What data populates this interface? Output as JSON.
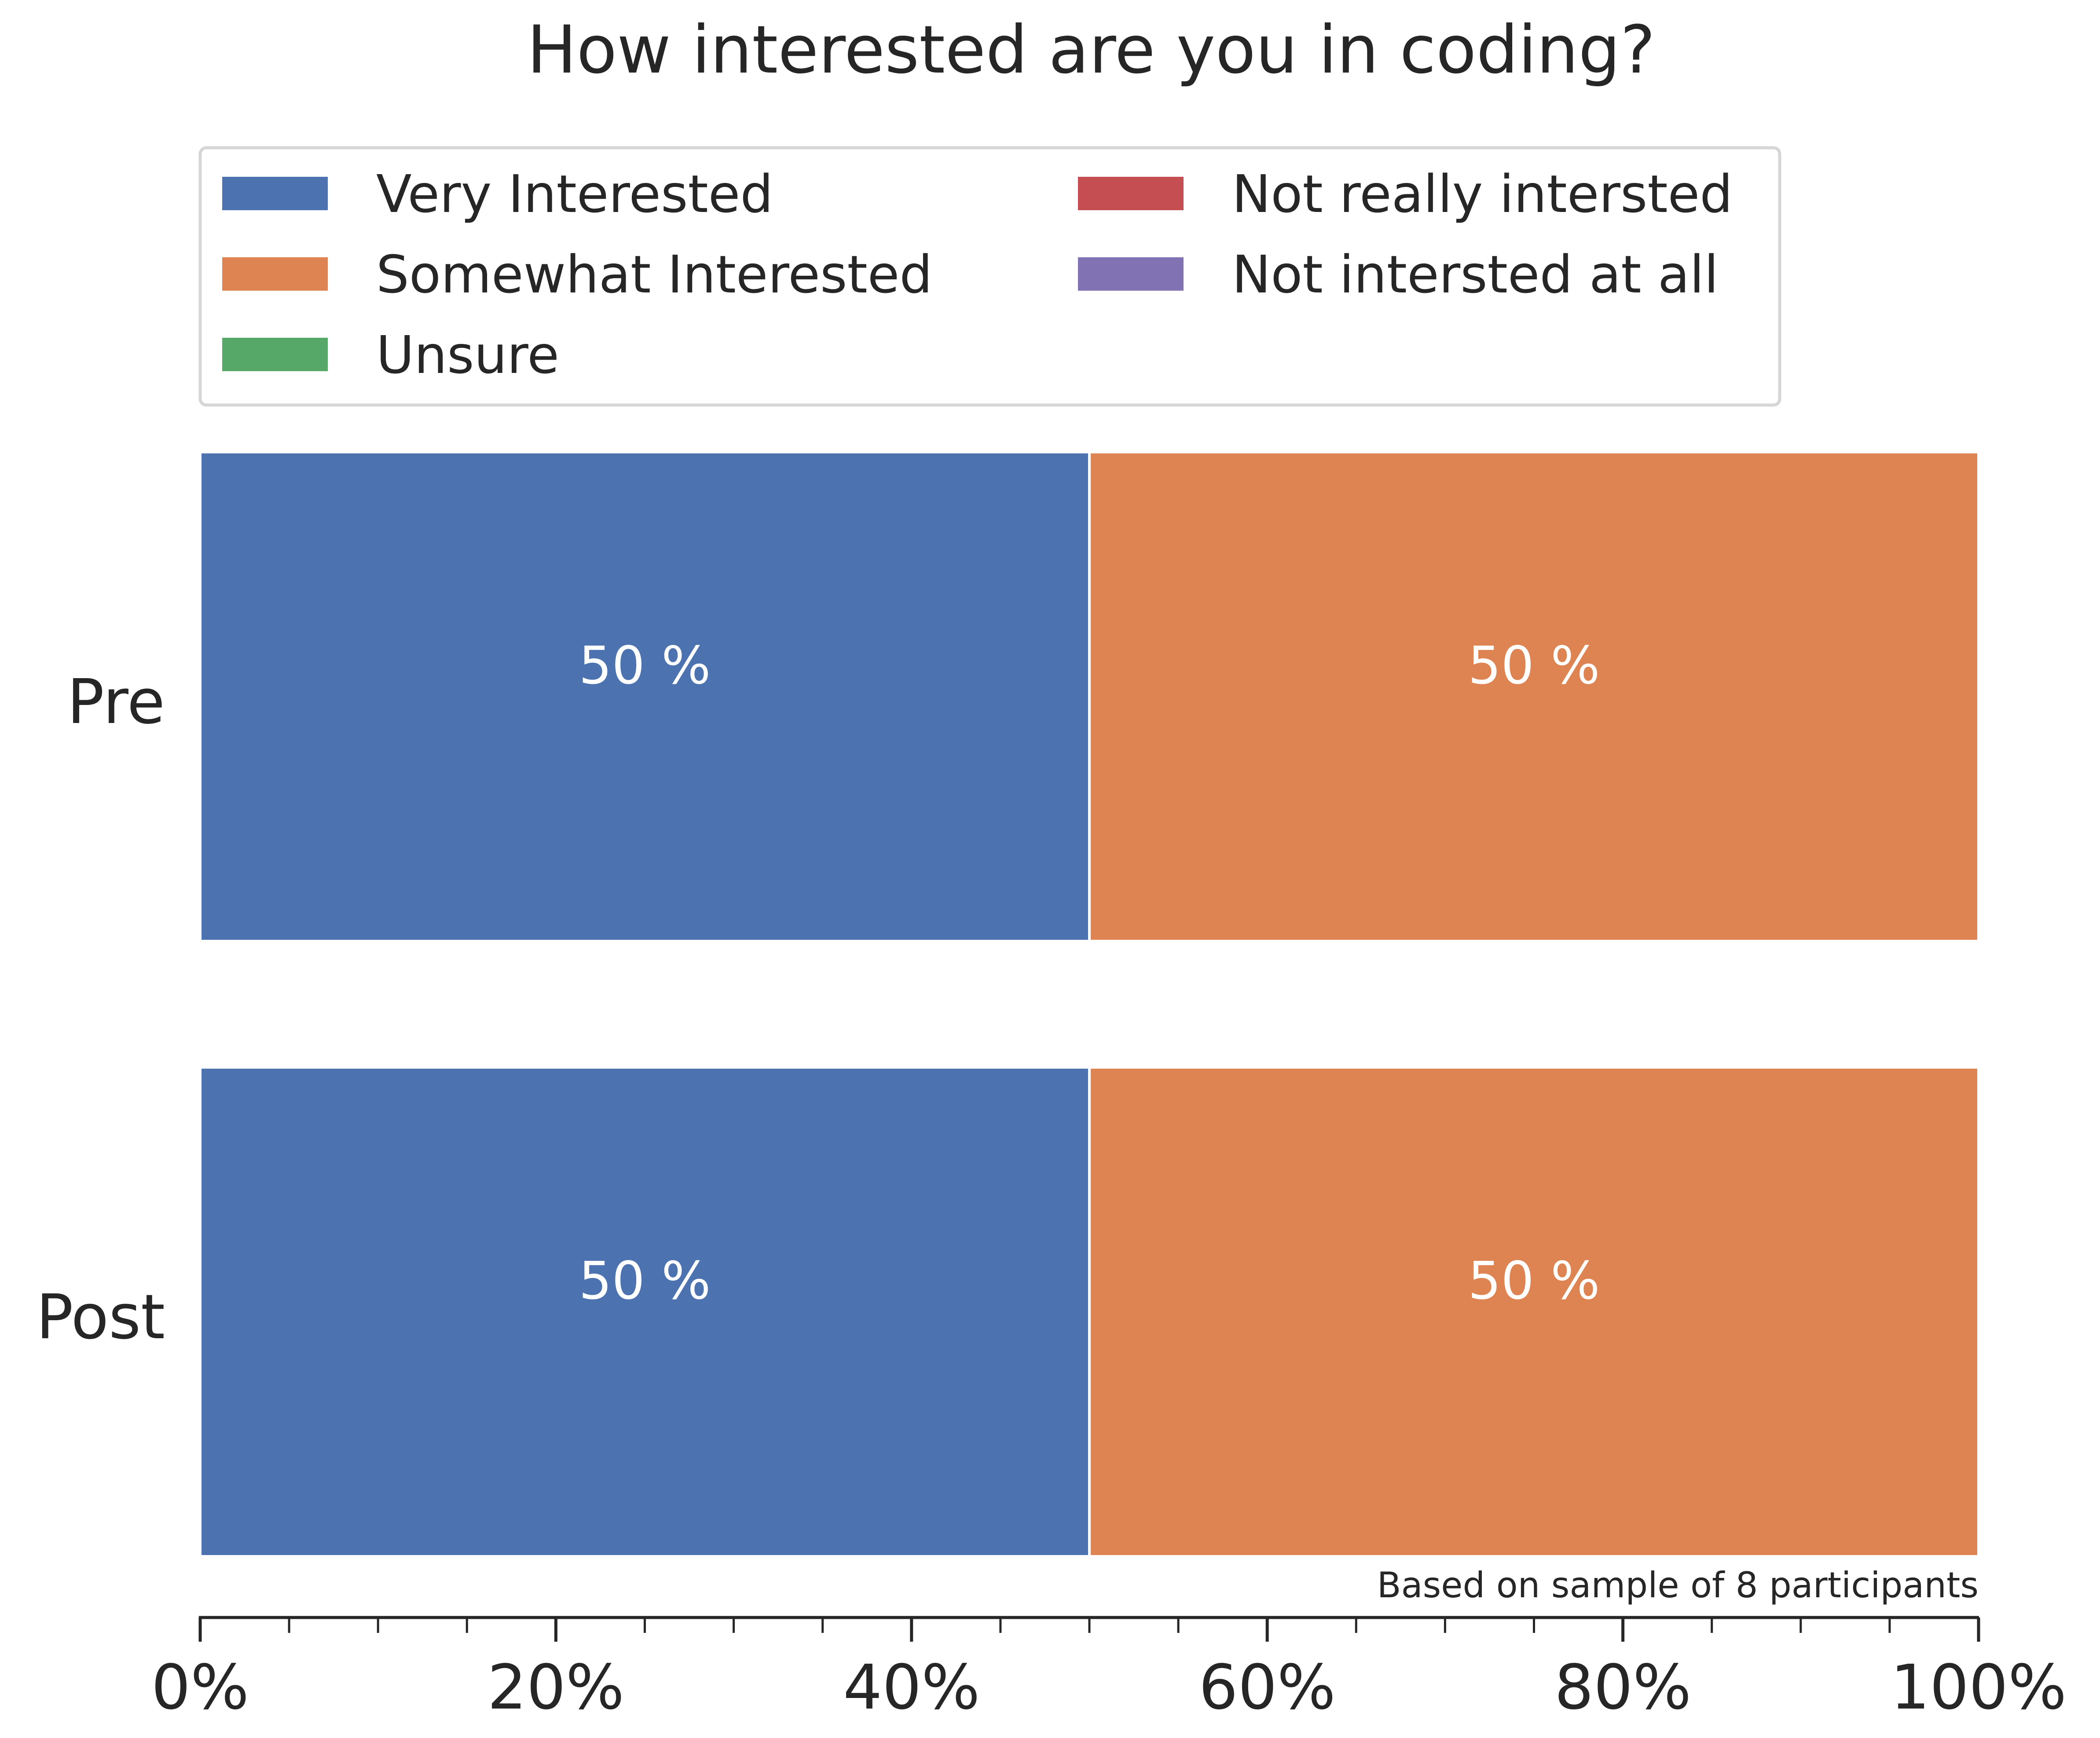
{
  "chart_data": {
    "type": "bar",
    "orientation": "horizontal",
    "stacked": true,
    "title": "How interested are you in coding?",
    "categories": [
      "Pre",
      "Post"
    ],
    "series": [
      {
        "name": "Very Interested",
        "color": "#4c72b0",
        "values": [
          50,
          50
        ]
      },
      {
        "name": "Somewhat Interested",
        "color": "#dd8452",
        "values": [
          50,
          50
        ]
      },
      {
        "name": "Unsure",
        "color": "#55a868",
        "values": [
          0,
          0
        ]
      },
      {
        "name": "Not really intersted",
        "color": "#c44e52",
        "values": [
          0,
          0
        ]
      },
      {
        "name": "Not intersted at all",
        "color": "#8172b3",
        "values": [
          0,
          0
        ]
      }
    ],
    "value_label_suffix": " %",
    "xlim": [
      0,
      100
    ],
    "xticks": [
      0,
      20,
      40,
      60,
      80,
      100
    ],
    "xtick_labels": [
      "0%",
      "20%",
      "40%",
      "60%",
      "80%",
      "100%"
    ],
    "minor_tick_step": 5,
    "xlabel": "",
    "ylabel": "",
    "annotation": "Based on sample of 8 participants",
    "legend": {
      "placement": "top",
      "columns": 2
    },
    "grid": false
  }
}
